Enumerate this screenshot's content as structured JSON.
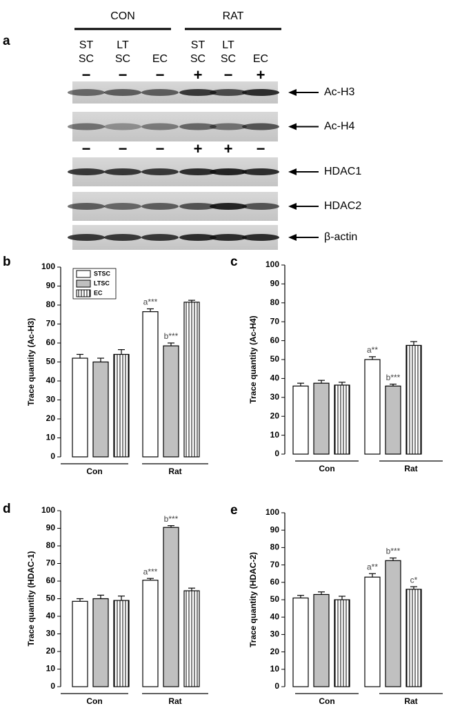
{
  "blot": {
    "panel": "a",
    "groups": [
      "CON",
      "RAT"
    ],
    "lanes": [
      [
        "ST",
        "SC"
      ],
      [
        "LT",
        "SC"
      ],
      [
        "EC"
      ],
      [
        "ST",
        "SC"
      ],
      [
        "LT",
        "SC"
      ],
      [
        "EC"
      ]
    ],
    "treatment_rows": [
      [
        "−",
        "−",
        "−",
        "+",
        "−",
        "+"
      ],
      [
        "−",
        "−",
        "−",
        "+",
        "+",
        "−"
      ]
    ],
    "bands": [
      "Ac-H3",
      "Ac-H4",
      "HDAC1",
      "HDAC2",
      "β-actin"
    ]
  },
  "chart_data": [
    {
      "type": "bar",
      "panel": "b",
      "y_label": "Trace quantity (Ac-H3)",
      "categories": [
        "Con",
        "Rat"
      ],
      "ylim": [
        0,
        100
      ],
      "yticks": [
        0,
        10,
        20,
        30,
        40,
        50,
        60,
        70,
        80,
        90,
        100
      ],
      "legend": true,
      "series": [
        {
          "name": "STSC",
          "color": "#ffffff",
          "values": [
            52,
            76.5
          ],
          "errors": [
            2,
            1.5
          ],
          "labels": [
            null,
            "a***"
          ]
        },
        {
          "name": "LTSC",
          "color": "#c0c0c0",
          "values": [
            50,
            58.5
          ],
          "errors": [
            2,
            1.5
          ],
          "labels": [
            null,
            "b***"
          ]
        },
        {
          "name": "EC",
          "color": "#ffffff",
          "hatch": "vertical",
          "values": [
            54,
            81.5
          ],
          "errors": [
            2.5,
            1
          ],
          "labels": [
            null,
            null
          ]
        }
      ]
    },
    {
      "type": "bar",
      "panel": "c",
      "y_label": "Trace quantity (Ac-H4)",
      "categories": [
        "Con",
        "Rat"
      ],
      "ylim": [
        0,
        100
      ],
      "yticks": [
        0,
        10,
        20,
        30,
        40,
        50,
        60,
        70,
        80,
        90,
        100
      ],
      "legend": false,
      "series": [
        {
          "color": "#ffffff",
          "values": [
            36,
            50
          ],
          "errors": [
            1.5,
            1.5
          ],
          "labels": [
            null,
            "a**"
          ]
        },
        {
          "color": "#c0c0c0",
          "values": [
            37.5,
            36
          ],
          "errors": [
            1.5,
            1
          ],
          "labels": [
            null,
            "b***"
          ]
        },
        {
          "color": "#ffffff",
          "hatch": "vertical",
          "values": [
            36.5,
            57.5
          ],
          "errors": [
            1.5,
            2
          ],
          "labels": [
            null,
            null
          ]
        }
      ]
    },
    {
      "type": "bar",
      "panel": "d",
      "y_label": "Trace quantity (HDAC-1)",
      "categories": [
        "Con",
        "Rat"
      ],
      "ylim": [
        0,
        100
      ],
      "yticks": [
        0,
        10,
        20,
        30,
        40,
        50,
        60,
        70,
        80,
        90,
        100
      ],
      "legend": false,
      "series": [
        {
          "color": "#ffffff",
          "values": [
            48.5,
            60.5
          ],
          "errors": [
            1.5,
            1
          ],
          "labels": [
            null,
            "a***"
          ]
        },
        {
          "color": "#c0c0c0",
          "values": [
            50,
            90.5
          ],
          "errors": [
            2,
            1
          ],
          "labels": [
            null,
            "b***"
          ]
        },
        {
          "color": "#ffffff",
          "hatch": "vertical",
          "values": [
            49,
            54.5
          ],
          "errors": [
            2.5,
            1.5
          ],
          "labels": [
            null,
            null
          ]
        }
      ]
    },
    {
      "type": "bar",
      "panel": "e",
      "y_label": "Trace quantity (HDAC-2)",
      "categories": [
        "Con",
        "Rat"
      ],
      "ylim": [
        0,
        100
      ],
      "yticks": [
        0,
        10,
        20,
        30,
        40,
        50,
        60,
        70,
        80,
        90,
        100
      ],
      "legend": false,
      "series": [
        {
          "color": "#ffffff",
          "values": [
            51,
            63
          ],
          "errors": [
            1.5,
            2
          ],
          "labels": [
            null,
            "a**"
          ]
        },
        {
          "color": "#c0c0c0",
          "values": [
            53,
            72.5
          ],
          "errors": [
            1.5,
            1.5
          ],
          "labels": [
            null,
            "b***"
          ]
        },
        {
          "color": "#ffffff",
          "hatch": "vertical",
          "values": [
            50,
            56
          ],
          "errors": [
            2,
            1.5
          ],
          "labels": [
            null,
            "c*"
          ]
        }
      ]
    }
  ]
}
